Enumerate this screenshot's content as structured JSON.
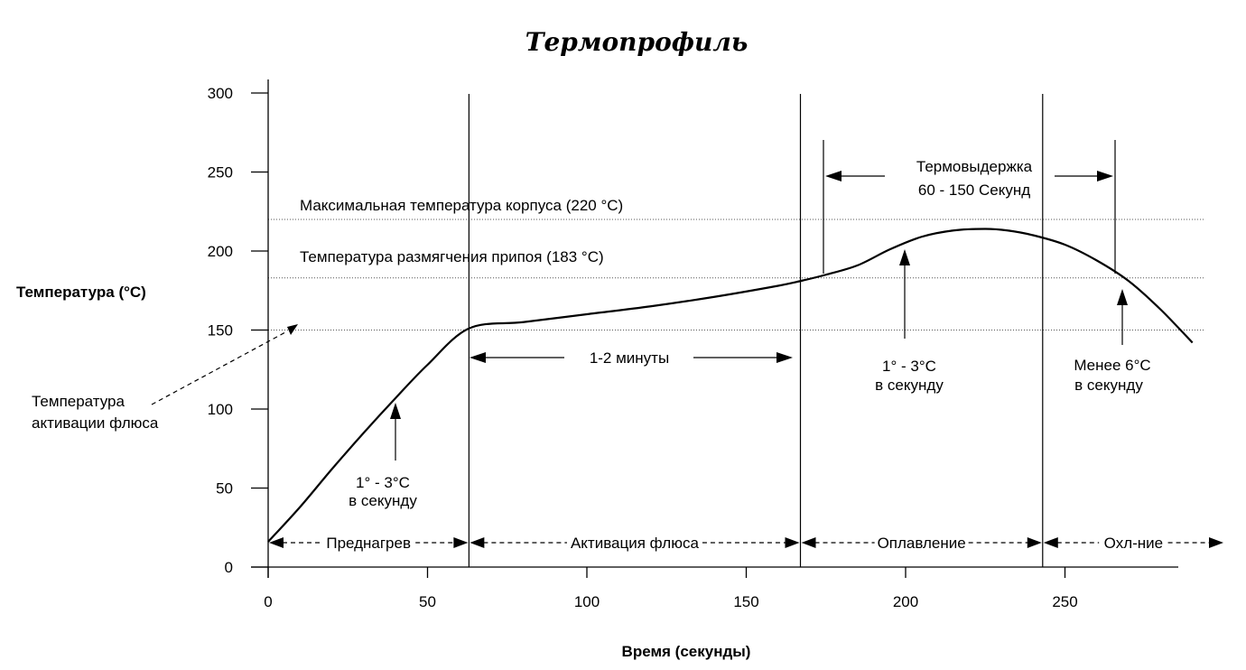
{
  "chart_data": {
    "type": "line",
    "title": "Термопрофиль",
    "xlabel": "Время (секунды)",
    "ylabel": "Температура (°C)",
    "xlim": [
      0,
      300
    ],
    "ylim": [
      0,
      300
    ],
    "x_ticks": [
      "0",
      "50",
      "100",
      "150",
      "200",
      "250"
    ],
    "y_ticks": [
      "0",
      "50",
      "100",
      "150",
      "200",
      "250",
      "300"
    ],
    "series": [
      {
        "x": [
          0,
          10,
          20,
          30,
          40,
          50,
          63,
          80,
          100,
          120,
          140,
          160,
          167,
          175,
          185,
          195,
          205,
          215,
          225,
          232,
          240,
          250,
          260,
          270,
          280,
          290
        ],
        "y": [
          16,
          38,
          62,
          85,
          107,
          128,
          151,
          155,
          160,
          165,
          171,
          178,
          181,
          185,
          191,
          201,
          209,
          213,
          214,
          213,
          210,
          204,
          194,
          181,
          163,
          142
        ]
      }
    ],
    "reference_lines": [
      {
        "label": "Максимальная температура корпуса (220 °C)",
        "y": 220
      },
      {
        "label": "Температура размягчения припоя (183 °C)",
        "y": 183
      }
    ],
    "phase_boundaries_x": [
      63,
      167,
      243
    ],
    "phases": [
      {
        "label": "Преднагрев",
        "from": 0,
        "to": 63
      },
      {
        "label": "Активация флюса",
        "from": 63,
        "to": 167
      },
      {
        "label": "Оплавление",
        "from": 167,
        "to": 243
      },
      {
        "label": "Охл-ние",
        "from": 243,
        "to": 300
      }
    ],
    "annotations": {
      "flux_activation_temp": {
        "line1": "Температура",
        "line2": "активации флюса",
        "y": 150
      },
      "preheat_rate": {
        "line1": "1° - 3°C",
        "line2": "в секунду",
        "x": 40
      },
      "activation_duration": {
        "label": "1-2 минуты"
      },
      "soak": {
        "line1": "Термовыдержка",
        "line2": "60 - 150 Секунд",
        "from": 175,
        "to": 266
      },
      "reflow_rate": {
        "line1": "1° - 3°C",
        "line2": "в секунду",
        "x": 200
      },
      "cooling_rate": {
        "line1": "Менее 6°C",
        "line2": "в секунду",
        "x": 268
      }
    }
  }
}
